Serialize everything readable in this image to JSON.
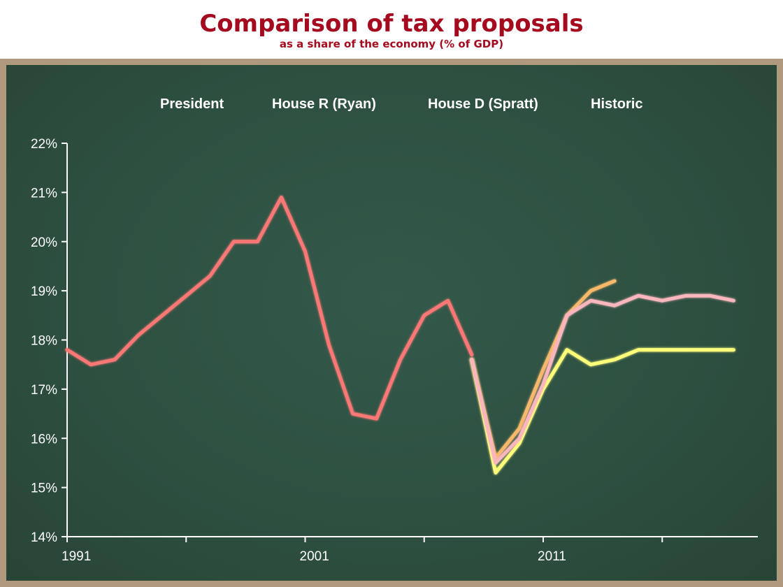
{
  "chart_data": {
    "type": "line",
    "title": "Comparison of tax proposals",
    "subtitle": "as a share of the economy (% of GDP)",
    "xlabel": "",
    "ylabel": "",
    "xlim": [
      1991,
      2020
    ],
    "ylim": [
      14,
      22
    ],
    "x_ticks": [
      1991,
      2001,
      2011
    ],
    "y_ticks": [
      14,
      15,
      16,
      17,
      18,
      19,
      20,
      21,
      22
    ],
    "y_tick_labels": [
      "14%",
      "15%",
      "16%",
      "17%",
      "18%",
      "19%",
      "20%",
      "21%",
      "22%"
    ],
    "x_tick_labels": [
      "1991",
      "2001",
      "2011"
    ],
    "legend_position": "top",
    "grid": false,
    "series": [
      {
        "name": "President",
        "color": "#f9b6bd",
        "x": [
          2008,
          2009,
          2010,
          2011,
          2012,
          2013,
          2014,
          2015,
          2016,
          2017,
          2018,
          2019
        ],
        "values": [
          17.6,
          15.5,
          16.0,
          17.1,
          18.5,
          18.8,
          18.7,
          18.9,
          18.8,
          18.9,
          18.9,
          18.8
        ]
      },
      {
        "name": "House R (Ryan)",
        "color": "#ffff7a",
        "x": [
          2008,
          2009,
          2010,
          2011,
          2012,
          2013,
          2014,
          2015,
          2016,
          2017,
          2018,
          2019
        ],
        "values": [
          17.6,
          15.3,
          15.9,
          17.0,
          17.8,
          17.5,
          17.6,
          17.8,
          17.8,
          17.8,
          17.8,
          17.8
        ]
      },
      {
        "name": "House D (Spratt)",
        "color": "#f7b86a",
        "x": [
          2008,
          2009,
          2010,
          2011,
          2012,
          2013,
          2014
        ],
        "values": [
          17.6,
          15.6,
          16.2,
          17.4,
          18.5,
          19.0,
          19.2
        ]
      },
      {
        "name": "Historic",
        "color": "#f97874",
        "x": [
          1991,
          1992,
          1993,
          1994,
          1995,
          1996,
          1997,
          1998,
          1999,
          2000,
          2001,
          2002,
          2003,
          2004,
          2005,
          2006,
          2007,
          2008
        ],
        "values": [
          17.8,
          17.5,
          17.6,
          18.1,
          18.5,
          18.9,
          19.3,
          20.0,
          20.0,
          20.9,
          19.8,
          17.9,
          16.5,
          16.4,
          17.6,
          18.5,
          18.8,
          17.7
        ]
      }
    ]
  }
}
